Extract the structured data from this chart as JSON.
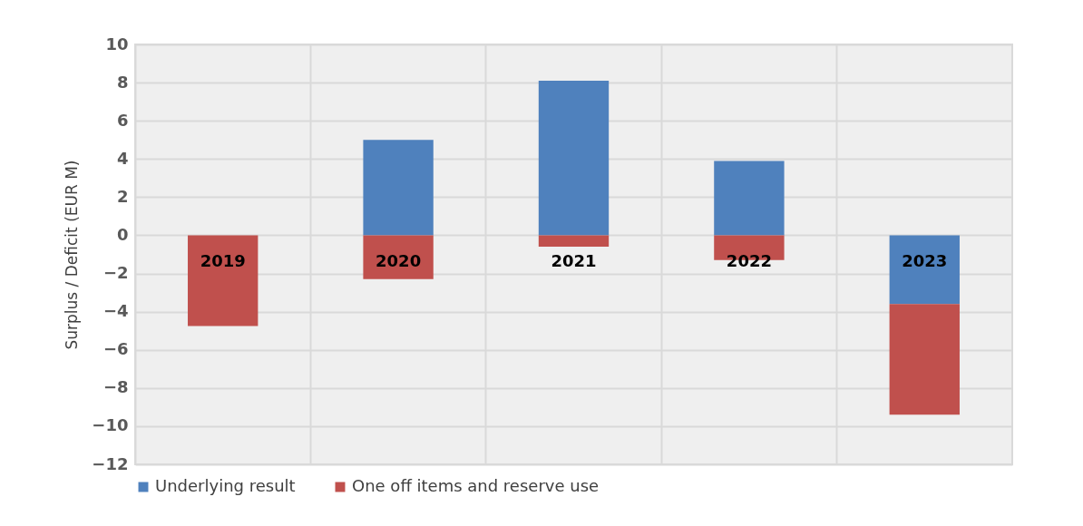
{
  "chart_data": {
    "type": "bar",
    "stacked": true,
    "ylabel": "Surplus / Deficit (EUR M)",
    "categories": [
      "2019",
      "2020",
      "2021",
      "2022",
      "2023"
    ],
    "series": [
      {
        "name": "Underlying result",
        "color": "#4f81bd",
        "values": [
          null,
          5.0,
          8.1,
          3.9,
          -3.6
        ]
      },
      {
        "name": "One off items and reserve use",
        "color": "#c0504d",
        "values": [
          -4.75,
          -2.3,
          -0.6,
          -1.3,
          -5.8
        ]
      }
    ],
    "ylim": [
      -12,
      10
    ],
    "yticks": [
      -12,
      -10,
      -8,
      -6,
      -4,
      -2,
      0,
      2,
      4,
      6,
      8,
      10
    ],
    "grid": true,
    "legend": "bottom"
  }
}
